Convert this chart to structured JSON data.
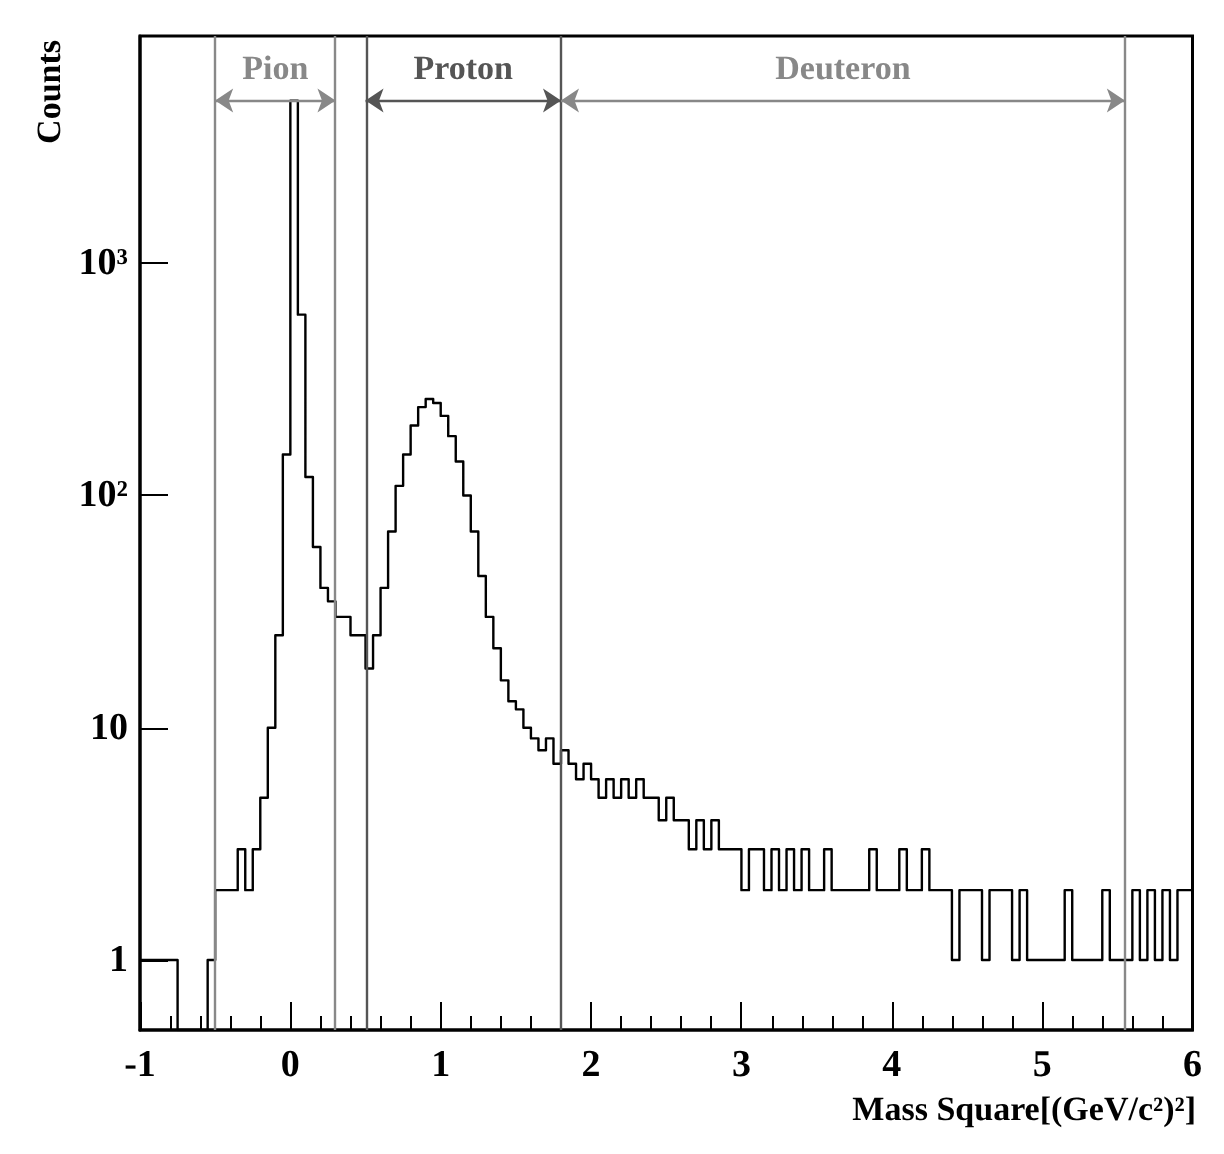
{
  "chart_data": {
    "type": "histogram",
    "xlabel": "Mass Square[(GeV/c²)²]",
    "ylabel": "Counts",
    "bins": [
      -1,
      -0.95,
      -0.9,
      -0.85,
      -0.8,
      -0.75,
      -0.7,
      -0.65,
      -0.6,
      -0.55,
      -0.5,
      -0.45,
      -0.4,
      -0.35,
      -0.3,
      -0.25,
      -0.2,
      -0.15,
      -0.1,
      -0.05,
      0,
      0.05,
      0.1,
      0.15,
      0.2,
      0.25,
      0.3,
      0.35,
      0.4,
      0.45,
      0.5,
      0.55,
      0.6,
      0.65,
      0.7,
      0.75,
      0.8,
      0.85,
      0.9,
      0.95,
      1,
      1.05,
      1.1,
      1.15,
      1.2,
      1.25,
      1.3,
      1.35,
      1.4,
      1.45,
      1.5,
      1.55,
      1.6,
      1.65,
      1.7,
      1.75,
      1.8,
      1.85,
      1.9,
      1.95,
      2,
      2.05,
      2.1,
      2.15,
      2.2,
      2.25,
      2.3,
      2.35,
      2.4,
      2.45,
      2.5,
      2.55,
      2.6,
      2.65,
      2.7,
      2.75,
      2.8,
      2.85,
      2.9,
      2.95,
      3,
      3.05,
      3.1,
      3.15,
      3.2,
      3.25,
      3.3,
      3.35,
      3.4,
      3.45,
      3.5,
      3.55,
      3.6,
      3.65,
      3.7,
      3.75,
      3.8,
      3.85,
      3.9,
      3.95,
      4,
      4.05,
      4.1,
      4.15,
      4.2,
      4.25,
      4.3,
      4.35,
      4.4,
      4.45,
      4.5,
      4.55,
      4.6,
      4.65,
      4.7,
      4.75,
      4.8,
      4.85,
      4.9,
      4.95,
      5,
      5.05,
      5.1,
      5.15,
      5.2,
      5.25,
      5.3,
      5.35,
      5.4,
      5.45,
      5.5,
      5.55,
      5.6,
      5.65,
      5.7,
      5.75,
      5.8,
      5.85,
      5.9,
      5.95,
      6
    ],
    "values": [
      1,
      1,
      1,
      1,
      1,
      null,
      null,
      null,
      null,
      1,
      2,
      2,
      2,
      3,
      2,
      3,
      5,
      10,
      25,
      150,
      5000,
      600,
      120,
      60,
      40,
      35,
      30,
      30,
      25,
      25,
      18,
      25,
      40,
      70,
      110,
      150,
      200,
      240,
      260,
      250,
      220,
      180,
      140,
      100,
      70,
      45,
      30,
      22,
      16,
      13,
      12,
      10,
      9,
      8,
      9,
      7,
      8,
      7,
      6,
      7,
      6,
      5,
      6,
      5,
      6,
      5,
      6,
      5,
      5,
      4,
      5,
      4,
      4,
      3,
      4,
      3,
      4,
      3,
      3,
      3,
      2,
      3,
      3,
      2,
      3,
      2,
      3,
      2,
      3,
      2,
      2,
      3,
      2,
      2,
      2,
      2,
      2,
      3,
      2,
      2,
      2,
      3,
      2,
      2,
      3,
      2,
      2,
      2,
      1,
      2,
      2,
      2,
      1,
      2,
      2,
      2,
      1,
      2,
      1,
      1,
      1,
      1,
      1,
      2,
      1,
      1,
      1,
      1,
      2,
      1,
      1,
      1,
      2,
      1,
      2,
      1,
      2,
      1,
      2,
      2
    ],
    "color": "#000000",
    "log": "y",
    "xlim": [
      -1,
      6
    ],
    "xticks": [
      -1,
      0,
      1,
      2,
      3,
      4,
      5,
      6
    ],
    "ylim": [
      0.5,
      9500
    ],
    "yticks": [
      1,
      10,
      {
        "value": 100,
        "label": "10²"
      },
      {
        "value": 1000,
        "label": "10³"
      }
    ],
    "ref_lines": [
      {
        "axis": "x",
        "value": -0.5,
        "color": "#888888"
      },
      {
        "axis": "x",
        "value": 0.3,
        "color": "#888888"
      },
      {
        "axis": "x",
        "value": 0.5,
        "color": "#555555"
      },
      {
        "axis": "x",
        "value": 1.8,
        "color": "#555555"
      },
      {
        "axis": "x",
        "value": 5.55,
        "color": "#888888"
      }
    ],
    "annotations": [
      "Pion",
      "Proton",
      "Deuteron"
    ],
    "grid": false
  }
}
